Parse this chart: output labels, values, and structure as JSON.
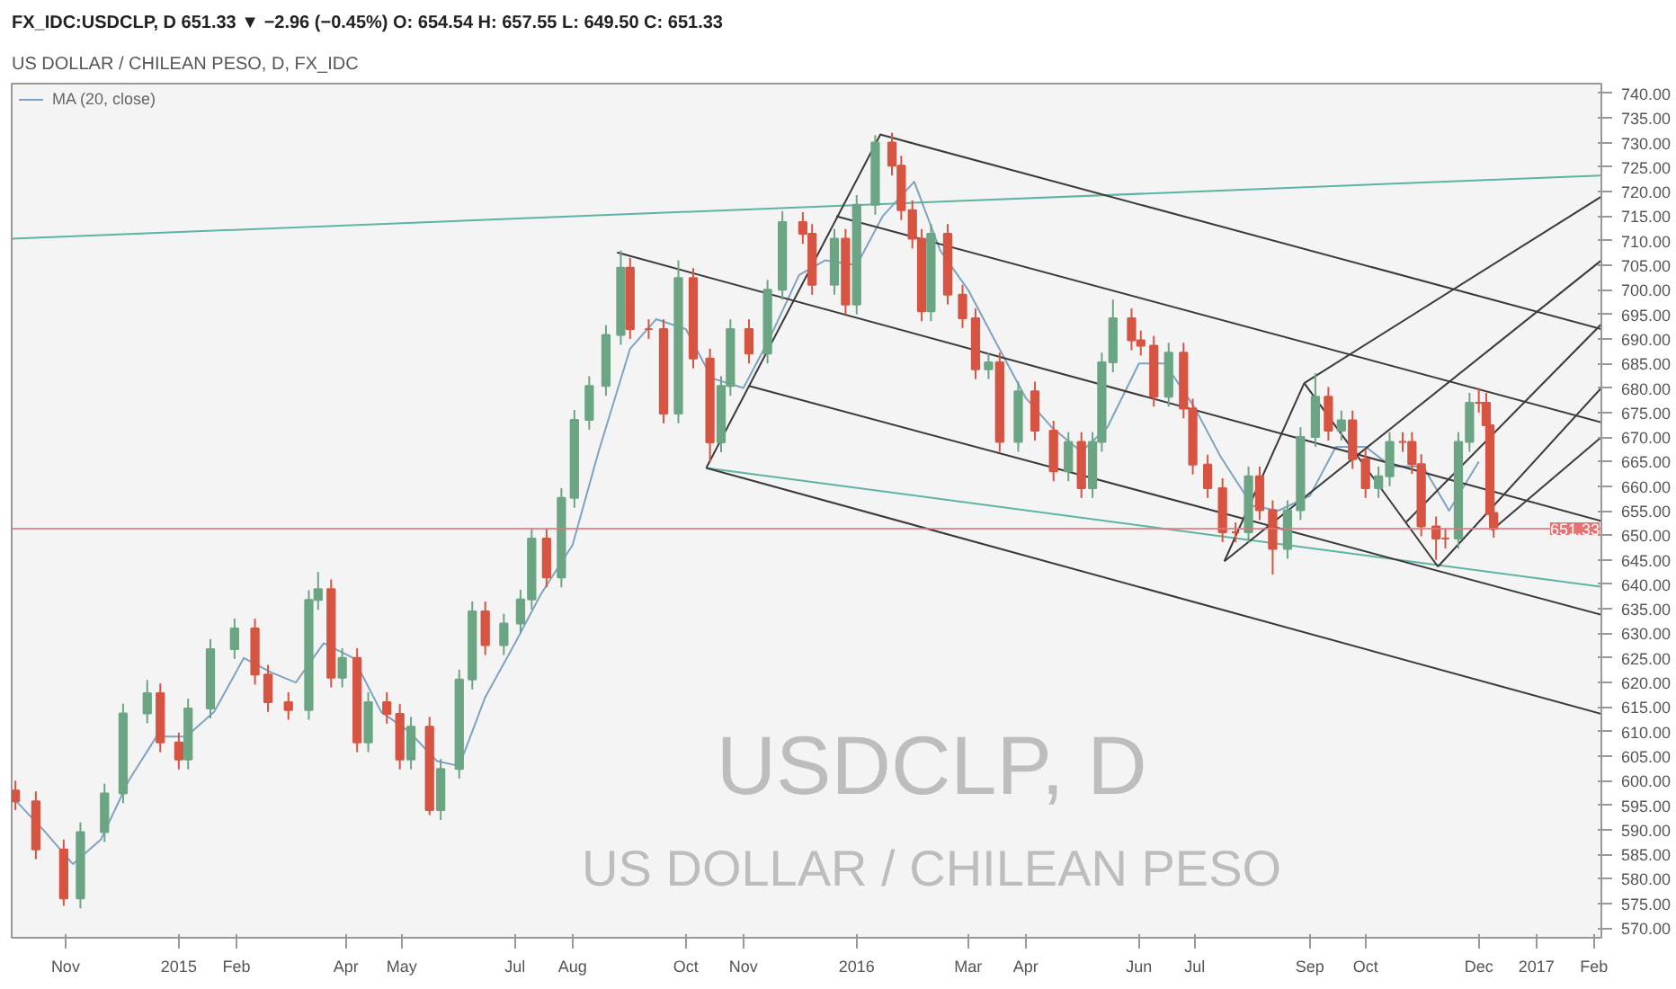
{
  "chart_data": {
    "type": "candlestick",
    "title": "US DOLLAR / CHILEAN PESO, D, FX_IDC",
    "subtitle": "FX_IDC:USDCLP, D 651.33 ▼ −2.96 (−0.45%) O: 654.54 H: 657.55 L: 649.50 C: 651.33",
    "annotations": [
      "USDCLP, D",
      "US DOLLAR / CHILEAN PESO"
    ],
    "x": [
      "2014-10-05",
      "2014-10-16",
      "2014-10-31",
      "2014-11-09",
      "2014-11-22",
      "2014-12-02",
      "2014-12-15",
      "2014-12-22",
      "2015-01-01",
      "2015-01-06",
      "2015-01-18",
      "2015-01-31",
      "2015-02-11",
      "2015-02-18",
      "2015-03-01",
      "2015-03-12",
      "2015-03-17",
      "2015-03-24",
      "2015-03-30",
      "2015-04-07",
      "2015-04-13",
      "2015-04-23",
      "2015-04-30",
      "2015-05-06",
      "2015-05-16",
      "2015-05-22",
      "2015-06-01",
      "2015-06-08",
      "2015-06-15",
      "2015-06-25",
      "2015-07-04",
      "2015-07-10",
      "2015-07-18",
      "2015-07-26",
      "2015-08-02",
      "2015-08-10",
      "2015-08-19",
      "2015-08-27",
      "2015-09-01",
      "2015-09-11",
      "2015-09-19",
      "2015-09-27",
      "2015-10-05",
      "2015-10-14",
      "2015-10-20",
      "2015-10-25",
      "2015-11-04",
      "2015-11-14",
      "2015-11-22",
      "2015-12-03",
      "2015-12-08",
      "2015-12-20",
      "2015-12-26",
      "2016-01-01",
      "2016-01-11",
      "2016-01-20",
      "2016-01-25",
      "2016-01-31",
      "2016-02-05",
      "2016-02-10",
      "2016-02-19",
      "2016-02-27",
      "2016-03-05",
      "2016-03-12",
      "2016-03-18",
      "2016-03-28",
      "2016-04-06",
      "2016-04-16",
      "2016-04-24",
      "2016-05-01",
      "2016-05-07",
      "2016-05-12",
      "2016-05-18",
      "2016-05-28",
      "2016-06-02",
      "2016-06-09",
      "2016-06-17",
      "2016-06-25",
      "2016-06-30",
      "2016-07-08",
      "2016-07-16",
      "2016-07-23",
      "2016-07-30",
      "2016-08-05",
      "2016-08-12",
      "2016-08-20",
      "2016-08-27",
      "2016-09-04",
      "2016-09-11",
      "2016-09-18",
      "2016-09-24",
      "2016-10-01",
      "2016-10-08",
      "2016-10-14",
      "2016-10-21",
      "2016-10-26",
      "2016-10-31",
      "2016-11-08",
      "2016-11-13",
      "2016-11-20",
      "2016-11-26",
      "2016-12-01",
      "2016-12-05",
      "2016-12-07",
      "2016-12-09"
    ],
    "ohlc": [
      [
        598,
        600,
        594,
        595.8
      ],
      [
        595.8,
        597.8,
        584,
        586
      ],
      [
        586,
        588,
        574.5,
        576
      ],
      [
        576,
        591.5,
        574,
        589.5
      ],
      [
        589.5,
        599.4,
        587.5,
        597.4
      ],
      [
        597.4,
        615.7,
        595.4,
        613.7
      ],
      [
        613.7,
        620.5,
        611.7,
        617.8
      ],
      [
        617.8,
        619.8,
        605.8,
        607.8
      ],
      [
        607.8,
        609.8,
        602.3,
        604.3
      ],
      [
        604.3,
        616.7,
        602.3,
        614.7
      ],
      [
        614.7,
        628.8,
        612.7,
        626.8
      ],
      [
        626.8,
        633,
        624.8,
        631
      ],
      [
        631,
        633,
        619.6,
        621.6
      ],
      [
        621.6,
        623.6,
        614,
        616
      ],
      [
        616,
        618,
        612.4,
        614.4
      ],
      [
        614.4,
        638.8,
        612.4,
        636.8
      ],
      [
        636.8,
        642.5,
        634.8,
        639
      ],
      [
        639,
        641,
        619,
        621
      ],
      [
        621,
        627,
        619,
        625
      ],
      [
        625,
        627,
        605.8,
        607.8
      ],
      [
        607.8,
        618,
        605.8,
        616
      ],
      [
        616,
        618,
        611.6,
        613.6
      ],
      [
        613.6,
        615.6,
        602.3,
        604.3
      ],
      [
        604.3,
        613,
        602.3,
        611
      ],
      [
        611,
        613,
        593,
        594
      ],
      [
        594,
        604.4,
        592,
        602.4
      ],
      [
        602.4,
        622.6,
        600.4,
        620.6
      ],
      [
        620.6,
        636.5,
        618.6,
        634.5
      ],
      [
        634.5,
        636.5,
        625.6,
        627.6
      ],
      [
        627.6,
        634,
        625.6,
        632
      ],
      [
        632,
        638.9,
        630,
        636.9
      ],
      [
        636.9,
        651.3,
        634.9,
        649.3
      ],
      [
        649.3,
        651.3,
        639.4,
        641.4
      ],
      [
        641.4,
        659.6,
        639.4,
        657.6
      ],
      [
        657.6,
        675.5,
        655.6,
        673.5
      ],
      [
        673.5,
        682.4,
        671.5,
        680.4
      ],
      [
        680.4,
        692.8,
        678.4,
        690.8
      ],
      [
        690.8,
        708,
        688.8,
        704.5
      ],
      [
        704.5,
        706.5,
        690,
        692
      ],
      [
        692,
        694,
        690,
        692
      ],
      [
        692,
        694,
        672.8,
        674.8
      ],
      [
        674.8,
        706,
        672.8,
        702.4
      ],
      [
        702.4,
        704.4,
        684,
        686
      ],
      [
        686,
        688,
        665,
        668.9
      ],
      [
        668.9,
        682.4,
        666.9,
        680.4
      ],
      [
        680.4,
        694,
        678.4,
        692
      ],
      [
        692,
        694,
        685,
        687
      ],
      [
        687,
        702,
        685,
        700
      ],
      [
        700,
        716,
        698,
        713.8
      ],
      [
        713.8,
        715.8,
        709.4,
        711.4
      ],
      [
        711.4,
        713.4,
        699,
        701
      ],
      [
        701,
        712.4,
        699,
        710.4
      ],
      [
        710.4,
        712.4,
        695,
        697
      ],
      [
        697,
        719.3,
        695,
        717.3
      ],
      [
        717.3,
        731.5,
        715.3,
        730
      ],
      [
        730,
        732,
        723.3,
        725.3
      ],
      [
        725.3,
        727.3,
        714.2,
        716.2
      ],
      [
        716.2,
        718.2,
        708.4,
        710.4
      ],
      [
        710.4,
        712.4,
        693.6,
        695.6
      ],
      [
        695.6,
        713.4,
        693.6,
        711.4
      ],
      [
        711.4,
        713.4,
        697,
        699
      ],
      [
        699,
        701,
        692.2,
        694.2
      ],
      [
        694.2,
        696.2,
        681.8,
        683.8
      ],
      [
        683.8,
        687.2,
        681.8,
        685.2
      ],
      [
        685.2,
        687.2,
        667,
        669
      ],
      [
        669,
        681.3,
        667,
        679.3
      ],
      [
        679.3,
        681.3,
        669.3,
        671.3
      ],
      [
        671.3,
        673.3,
        661,
        663
      ],
      [
        663,
        671,
        661,
        669
      ],
      [
        669,
        671,
        657.6,
        659.6
      ],
      [
        659.6,
        671,
        657.6,
        669
      ],
      [
        669,
        687.2,
        667,
        685.2
      ],
      [
        685.2,
        698,
        683.2,
        694.2
      ],
      [
        694.2,
        696.2,
        687.7,
        689.7
      ],
      [
        689.7,
        691.7,
        686.6,
        688.6
      ],
      [
        688.6,
        690.6,
        676.2,
        678.2
      ],
      [
        678.2,
        689.2,
        676.2,
        687.2
      ],
      [
        687.2,
        689.2,
        673.8,
        675.8
      ],
      [
        675.8,
        677.8,
        662.4,
        664.4
      ],
      [
        664.4,
        666.4,
        657.6,
        659.6
      ],
      [
        659.6,
        661.6,
        648.6,
        650.6
      ],
      [
        650.6,
        652.6,
        648.6,
        650.6
      ],
      [
        650.6,
        664,
        648.6,
        662
      ],
      [
        662,
        664,
        653.1,
        655.1
      ],
      [
        655.1,
        657.1,
        642,
        647.2
      ],
      [
        647.2,
        657.1,
        645.2,
        655.1
      ],
      [
        655.1,
        672,
        653.1,
        670
      ],
      [
        670,
        683,
        668,
        678.2
      ],
      [
        678.2,
        680.2,
        669.3,
        671.3
      ],
      [
        671.3,
        675.4,
        669.3,
        673.4
      ],
      [
        673.4,
        675.4,
        663.5,
        665.5
      ],
      [
        665.5,
        667.5,
        657.6,
        659.6
      ],
      [
        659.6,
        664,
        657.6,
        662
      ],
      [
        662,
        671,
        660,
        669
      ],
      [
        669,
        671,
        667,
        669
      ],
      [
        669,
        671,
        662.5,
        664.5
      ],
      [
        664.5,
        666.5,
        649.8,
        651.8
      ],
      [
        651.8,
        653.8,
        645,
        649.3
      ],
      [
        649.3,
        651.3,
        647.3,
        649.3
      ],
      [
        649.3,
        671,
        647.3,
        669
      ],
      [
        669,
        679,
        667,
        677
      ],
      [
        677,
        680,
        675,
        677
      ],
      [
        677,
        679,
        670.4,
        672.4
      ],
      [
        672.4,
        674.4,
        652.3,
        654.3
      ],
      [
        654.54,
        657.55,
        649.5,
        651.33
      ]
    ],
    "colors": [
      "#d75442",
      "#d75442",
      "#d75442",
      "#6ba583",
      "#6ba583",
      "#6ba583",
      "#6ba583",
      "#d75442",
      "#d75442",
      "#6ba583",
      "#6ba583",
      "#6ba583",
      "#d75442",
      "#d75442",
      "#d75442",
      "#6ba583",
      "#6ba583",
      "#d75442",
      "#6ba583",
      "#d75442",
      "#6ba583",
      "#d75442",
      "#d75442",
      "#6ba583",
      "#d75442",
      "#6ba583",
      "#6ba583",
      "#6ba583",
      "#d75442",
      "#6ba583",
      "#6ba583",
      "#6ba583",
      "#d75442",
      "#6ba583",
      "#6ba583",
      "#6ba583",
      "#6ba583",
      "#6ba583",
      "#d75442",
      "#d75442",
      "#d75442",
      "#6ba583",
      "#d75442",
      "#d75442",
      "#6ba583",
      "#6ba583",
      "#d75442",
      "#6ba583",
      "#6ba583",
      "#d75442",
      "#d75442",
      "#6ba583",
      "#d75442",
      "#6ba583",
      "#6ba583",
      "#d75442",
      "#d75442",
      "#d75442",
      "#d75442",
      "#6ba583",
      "#d75442",
      "#d75442",
      "#d75442",
      "#6ba583",
      "#d75442",
      "#6ba583",
      "#d75442",
      "#d75442",
      "#6ba583",
      "#d75442",
      "#6ba583",
      "#6ba583",
      "#6ba583",
      "#d75442",
      "#d75442",
      "#d75442",
      "#6ba583",
      "#d75442",
      "#d75442",
      "#d75442",
      "#d75442",
      "#d75442",
      "#6ba583",
      "#d75442",
      "#d75442",
      "#6ba583",
      "#6ba583",
      "#6ba583",
      "#d75442",
      "#6ba583",
      "#d75442",
      "#d75442",
      "#6ba583",
      "#6ba583",
      "#d75442",
      "#d75442",
      "#d75442",
      "#d75442",
      "#d75442",
      "#6ba583",
      "#6ba583",
      "#d75442",
      "#d75442",
      "#d75442",
      "#d75442"
    ],
    "series": [
      {
        "type": "line",
        "name": "MA (20, close)",
        "color": "#7fa2c2",
        "x": [
          "2014-10-05",
          "2014-10-20",
          "2014-11-05",
          "2014-11-20",
          "2014-12-05",
          "2014-12-20",
          "2015-01-05",
          "2015-01-20",
          "2015-02-05",
          "2015-02-20",
          "2015-03-05",
          "2015-03-20",
          "2015-04-05",
          "2015-04-20",
          "2015-05-05",
          "2015-05-20",
          "2015-06-01",
          "2015-06-15",
          "2015-07-01",
          "2015-07-15",
          "2015-08-01",
          "2015-08-15",
          "2015-09-01",
          "2015-09-15",
          "2015-10-01",
          "2015-10-15",
          "2015-11-01",
          "2015-11-15",
          "2015-12-01",
          "2015-12-15",
          "2016-01-01",
          "2016-01-15",
          "2016-02-01",
          "2016-02-15",
          "2016-03-01",
          "2016-03-15",
          "2016-04-01",
          "2016-04-15",
          "2016-05-01",
          "2016-05-15",
          "2016-06-01",
          "2016-06-15",
          "2016-07-01",
          "2016-07-15",
          "2016-08-01",
          "2016-08-15",
          "2016-09-01",
          "2016-09-15",
          "2016-10-01",
          "2016-10-15",
          "2016-11-01",
          "2016-11-15",
          "2016-12-01"
        ],
        "values": [
          596,
          590,
          583,
          588,
          600,
          609,
          609,
          614,
          625,
          622,
          620,
          628,
          625,
          614,
          610,
          604,
          603,
          617,
          628,
          638,
          648,
          667,
          688,
          694,
          692,
          682,
          680,
          690,
          703,
          706,
          705,
          715,
          722,
          708,
          700,
          690,
          678,
          672,
          667,
          672,
          685,
          685,
          676,
          666,
          656,
          655,
          658,
          668,
          668,
          664,
          664,
          655,
          665
        ]
      },
      {
        "type": "line",
        "color": "#5fb3a3",
        "x": [
          "2014-10-03",
          "2017-02-05"
        ],
        "values": [
          710.4,
          723.3
        ]
      },
      {
        "type": "line",
        "color": "#5fb3a3",
        "x": [
          "2015-10-12",
          "2017-02-05"
        ],
        "values": [
          663.7,
          639.5
        ]
      },
      {
        "type": "line",
        "color": "#3a3a3a",
        "x": [
          "2015-10-12",
          "2016-01-14"
        ],
        "values": [
          663.7,
          731.8
        ]
      },
      {
        "type": "line",
        "color": "#3a3a3a",
        "x": [
          "2016-01-14",
          "2017-02-05"
        ],
        "values": [
          731.6,
          692
        ]
      },
      {
        "type": "line",
        "color": "#3a3a3a",
        "x": [
          "2015-12-21",
          "2017-02-05"
        ],
        "values": [
          715,
          673
        ]
      },
      {
        "type": "line",
        "color": "#3a3a3a",
        "x": [
          "2015-08-25",
          "2017-02-05"
        ],
        "values": [
          707.6,
          652.9
        ]
      },
      {
        "type": "line",
        "color": "#3a3a3a",
        "x": [
          "2015-11-04",
          "2017-02-05"
        ],
        "values": [
          680.4,
          633.8
        ]
      },
      {
        "type": "line",
        "color": "#3a3a3a",
        "x": [
          "2015-10-12",
          "2017-02-05"
        ],
        "values": [
          663.7,
          613.6
        ]
      },
      {
        "type": "line",
        "color": "#3a3a3a",
        "x": [
          "2016-07-17",
          "2016-08-29"
        ],
        "values": [
          644.7,
          681
        ]
      },
      {
        "type": "line",
        "color": "#3a3a3a",
        "x": [
          "2016-08-29",
          "2016-11-09"
        ],
        "values": [
          681,
          643.6
        ]
      },
      {
        "type": "line",
        "color": "#3a3a3a",
        "x": [
          "2016-08-29",
          "2017-02-05"
        ],
        "values": [
          681,
          719
        ]
      },
      {
        "type": "line",
        "color": "#3a3a3a",
        "x": [
          "2016-07-17",
          "2017-02-05"
        ],
        "values": [
          644.7,
          706
        ]
      },
      {
        "type": "line",
        "color": "#3a3a3a",
        "x": [
          "2016-10-23",
          "2017-02-05"
        ],
        "values": [
          652.7,
          693
        ]
      },
      {
        "type": "line",
        "color": "#3a3a3a",
        "x": [
          "2016-11-09",
          "2017-02-05"
        ],
        "values": [
          643.6,
          680
        ]
      },
      {
        "type": "line",
        "color": "#3a3a3a",
        "x": [
          "2016-12-08",
          "2017-02-05"
        ],
        "values": [
          651,
          670
        ]
      }
    ],
    "ref_lines": [
      {
        "axis": "y",
        "value": 651.33,
        "label": "651.33",
        "color": "#e57373"
      }
    ],
    "xlim": [
      "2014-10-03",
      "2017-02-05"
    ],
    "xticks": [
      {
        "value": "2014-11-01",
        "label": "Nov"
      },
      {
        "value": "2015-01-01",
        "label": "2015"
      },
      {
        "value": "2015-02-01",
        "label": "Feb"
      },
      {
        "value": "2015-04-01",
        "label": "Apr"
      },
      {
        "value": "2015-05-01",
        "label": "May"
      },
      {
        "value": "2015-07-01",
        "label": "Jul"
      },
      {
        "value": "2015-08-01",
        "label": "Aug"
      },
      {
        "value": "2015-10-01",
        "label": "Oct"
      },
      {
        "value": "2015-11-01",
        "label": "Nov"
      },
      {
        "value": "2016-01-01",
        "label": "2016"
      },
      {
        "value": "2016-03-01",
        "label": "Mar"
      },
      {
        "value": "2016-04-01",
        "label": "Apr"
      },
      {
        "value": "2016-06-01",
        "label": "Jun"
      },
      {
        "value": "2016-07-01",
        "label": "Jul"
      },
      {
        "value": "2016-09-01",
        "label": "Sep"
      },
      {
        "value": "2016-10-01",
        "label": "Oct"
      },
      {
        "value": "2016-12-01",
        "label": "Dec"
      },
      {
        "value": "2017-01-01",
        "label": "2017"
      },
      {
        "value": "2017-02-01",
        "label": "Feb"
      }
    ],
    "ylim": [
      568,
      742
    ],
    "yticks": [
      {
        "value": 570,
        "label": "570.00"
      },
      {
        "value": 575,
        "label": "575.00"
      },
      {
        "value": 580,
        "label": "580.00"
      },
      {
        "value": 585,
        "label": "585.00"
      },
      {
        "value": 590,
        "label": "590.00"
      },
      {
        "value": 595,
        "label": "595.00"
      },
      {
        "value": 600,
        "label": "600.00"
      },
      {
        "value": 605,
        "label": "605.00"
      },
      {
        "value": 610,
        "label": "610.00"
      },
      {
        "value": 615,
        "label": "615.00"
      },
      {
        "value": 620,
        "label": "620.00"
      },
      {
        "value": 625,
        "label": "625.00"
      },
      {
        "value": 630,
        "label": "630.00"
      },
      {
        "value": 635,
        "label": "635.00"
      },
      {
        "value": 640,
        "label": "640.00"
      },
      {
        "value": 645,
        "label": "645.00"
      },
      {
        "value": 650,
        "label": "650.00"
      },
      {
        "value": 655,
        "label": "655.00"
      },
      {
        "value": 660,
        "label": "660.00"
      },
      {
        "value": 665,
        "label": "665.00"
      },
      {
        "value": 670,
        "label": "670.00"
      },
      {
        "value": 675,
        "label": "675.00"
      },
      {
        "value": 680,
        "label": "680.00"
      },
      {
        "value": 685,
        "label": "685.00"
      },
      {
        "value": 690,
        "label": "690.00"
      },
      {
        "value": 695,
        "label": "695.00"
      },
      {
        "value": 700,
        "label": "700.00"
      },
      {
        "value": 705,
        "label": "705.00"
      },
      {
        "value": 710,
        "label": "710.00"
      },
      {
        "value": 715,
        "label": "715.00"
      },
      {
        "value": 720,
        "label": "720.00"
      },
      {
        "value": 725,
        "label": "725.00"
      },
      {
        "value": 730,
        "label": "730.00"
      },
      {
        "value": 735,
        "label": "735.00"
      },
      {
        "value": 740,
        "label": "740.00"
      }
    ],
    "legend": "top left",
    "grid": false
  }
}
